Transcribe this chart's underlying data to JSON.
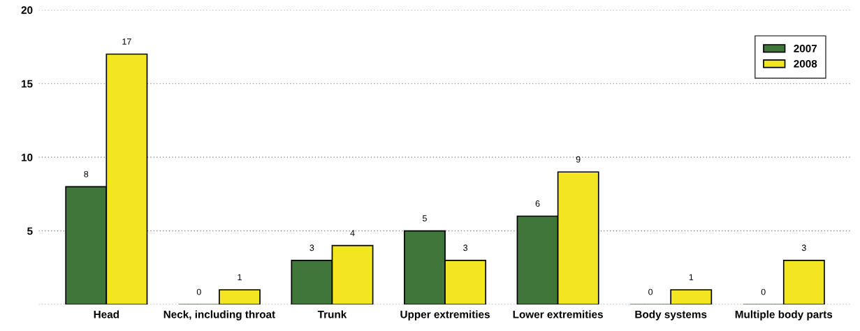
{
  "chart_data": {
    "type": "bar",
    "categories": [
      "Head",
      "Neck, including throat",
      "Trunk",
      "Upper extremities",
      "Lower extremities",
      "Body systems",
      "Multiple body parts"
    ],
    "series": [
      {
        "name": "2007",
        "color": "#3f773a",
        "values": [
          8,
          0,
          3,
          5,
          6,
          0,
          0
        ]
      },
      {
        "name": "2008",
        "color": "#f2e622",
        "values": [
          17,
          1,
          4,
          3,
          9,
          1,
          3
        ]
      }
    ],
    "ylim": [
      0,
      20
    ],
    "yticks": [
      {
        "value": 0,
        "label": null
      },
      5,
      10,
      15,
      20
    ],
    "grid": "y",
    "legend": "top right",
    "data_labels": true
  }
}
